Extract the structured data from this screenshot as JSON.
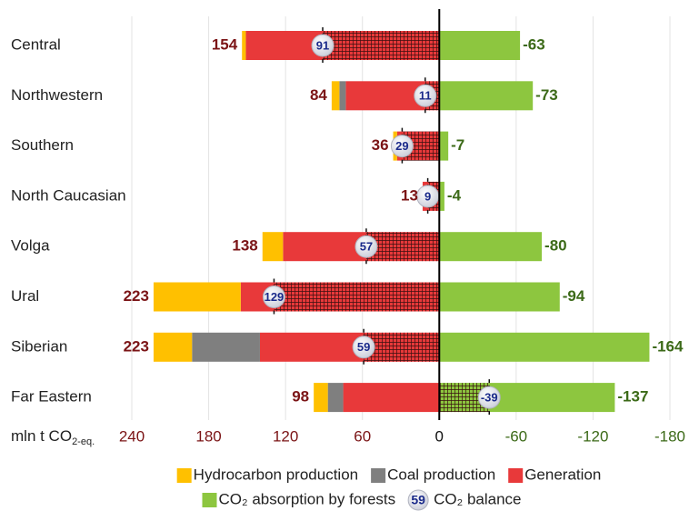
{
  "chart_data": {
    "type": "diverging_stacked_bar",
    "categories": [
      "Central",
      "Northwestern",
      "Southern",
      "North Caucasian",
      "Volga",
      "Ural",
      "Siberian",
      "Far Eastern"
    ],
    "series": [
      {
        "name": "Hydrocarbon production",
        "color": "#ffc000",
        "values": [
          3,
          6,
          3,
          0,
          16,
          68,
          30,
          11
        ]
      },
      {
        "name": "Coal production",
        "color": "#7f7f7f",
        "values": [
          0,
          5,
          0,
          0,
          0,
          0,
          53,
          12
        ]
      },
      {
        "name": "Generation",
        "color": "#e8393a",
        "values": [
          151,
          73,
          33,
          13,
          122,
          155,
          140,
          75
        ]
      },
      {
        "name": "CO₂ absorption by forests",
        "color": "#8dc63f",
        "values": [
          -63,
          -73,
          -7,
          -4,
          -80,
          -94,
          -164,
          -137
        ]
      }
    ],
    "totals": [
      154,
      84,
      36,
      13,
      138,
      223,
      223,
      98
    ],
    "balance": {
      "name": "CO₂ balance",
      "values": [
        91,
        11,
        29,
        9,
        57,
        129,
        59,
        -39
      ],
      "legend_example": 59
    },
    "x_label": {
      "text": "mln t CO",
      "sub": "2-eq."
    },
    "xlim": [
      240,
      -180
    ],
    "xticks": [
      240,
      180,
      120,
      60,
      0,
      -60,
      -120,
      -180
    ],
    "grid": true
  }
}
